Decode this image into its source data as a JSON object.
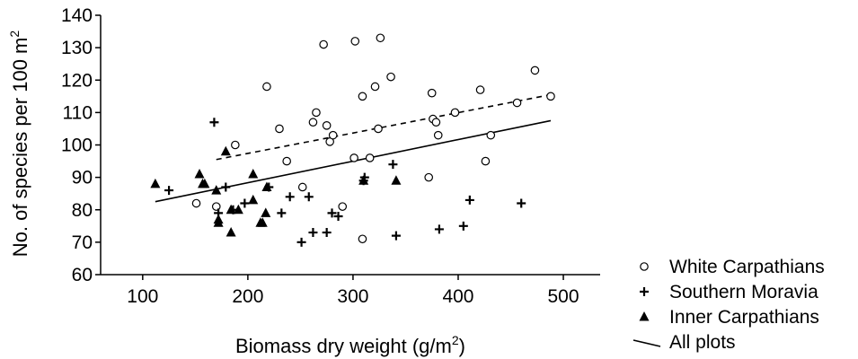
{
  "chart_data": {
    "type": "scatter",
    "xlabel": "Biomass dry weight (g/m",
    "xlabel_sup": "2",
    "xlabel_end": ")",
    "ylabel": "No. of species per 100 m",
    "ylabel_sup": "2",
    "xlim": [
      60,
      535
    ],
    "ylim": [
      60,
      140
    ],
    "x_ticks": [
      100,
      200,
      300,
      400,
      500
    ],
    "y_ticks": [
      60,
      70,
      80,
      90,
      100,
      110,
      120,
      130,
      140
    ],
    "grid": false,
    "legend_position": "bottom-right, outside plot",
    "series": [
      {
        "name": "White Carpathians",
        "marker": "open-circle",
        "points": [
          [
            151,
            82
          ],
          [
            170,
            81
          ],
          [
            188,
            100
          ],
          [
            218,
            118
          ],
          [
            230,
            105
          ],
          [
            237,
            95
          ],
          [
            252,
            87
          ],
          [
            262,
            107
          ],
          [
            265,
            110
          ],
          [
            272,
            131
          ],
          [
            275,
            106
          ],
          [
            278,
            101
          ],
          [
            281,
            103
          ],
          [
            290,
            81
          ],
          [
            301,
            96
          ],
          [
            302,
            132
          ],
          [
            309,
            115
          ],
          [
            309,
            71
          ],
          [
            316,
            96
          ],
          [
            321,
            118
          ],
          [
            324,
            105
          ],
          [
            326,
            133
          ],
          [
            336,
            121
          ],
          [
            372,
            90
          ],
          [
            375,
            116
          ],
          [
            376,
            108
          ],
          [
            379,
            107
          ],
          [
            381,
            103
          ],
          [
            397,
            110
          ],
          [
            421,
            117
          ],
          [
            426,
            95
          ],
          [
            431,
            103
          ],
          [
            456,
            113
          ],
          [
            473,
            123
          ],
          [
            488,
            115
          ]
        ]
      },
      {
        "name": "Southern Moravia",
        "marker": "plus",
        "points": [
          [
            125,
            86
          ],
          [
            168,
            107
          ],
          [
            172,
            79
          ],
          [
            179,
            87
          ],
          [
            186,
            80
          ],
          [
            197,
            82
          ],
          [
            220,
            87
          ],
          [
            232,
            79
          ],
          [
            240,
            84
          ],
          [
            251,
            70
          ],
          [
            258,
            84
          ],
          [
            262,
            73
          ],
          [
            275,
            73
          ],
          [
            280,
            79
          ],
          [
            286,
            78
          ],
          [
            310,
            89
          ],
          [
            311,
            90
          ],
          [
            338,
            94
          ],
          [
            341,
            72
          ],
          [
            382,
            74
          ],
          [
            405,
            75
          ],
          [
            411,
            83
          ],
          [
            460,
            82
          ]
        ]
      },
      {
        "name": "Inner Carpathians",
        "marker": "filled-triangle",
        "points": [
          [
            112,
            88
          ],
          [
            154,
            91
          ],
          [
            157,
            88
          ],
          [
            159,
            88
          ],
          [
            170,
            86
          ],
          [
            172,
            77
          ],
          [
            172,
            76
          ],
          [
            179,
            98
          ],
          [
            184,
            80
          ],
          [
            184,
            73
          ],
          [
            191,
            80
          ],
          [
            205,
            91
          ],
          [
            205,
            83
          ],
          [
            212,
            76
          ],
          [
            214,
            76
          ],
          [
            217,
            79
          ],
          [
            218,
            87
          ],
          [
            310,
            89
          ],
          [
            341,
            89
          ]
        ]
      },
      {
        "name": "All plots",
        "marker": "line",
        "style": "solid",
        "x": [
          112,
          488
        ],
        "y": [
          82.5,
          107.5
        ]
      },
      {
        "marker": "line",
        "style": "dashed",
        "x": [
          170,
          488
        ],
        "y": [
          95.5,
          115.5
        ]
      }
    ]
  }
}
